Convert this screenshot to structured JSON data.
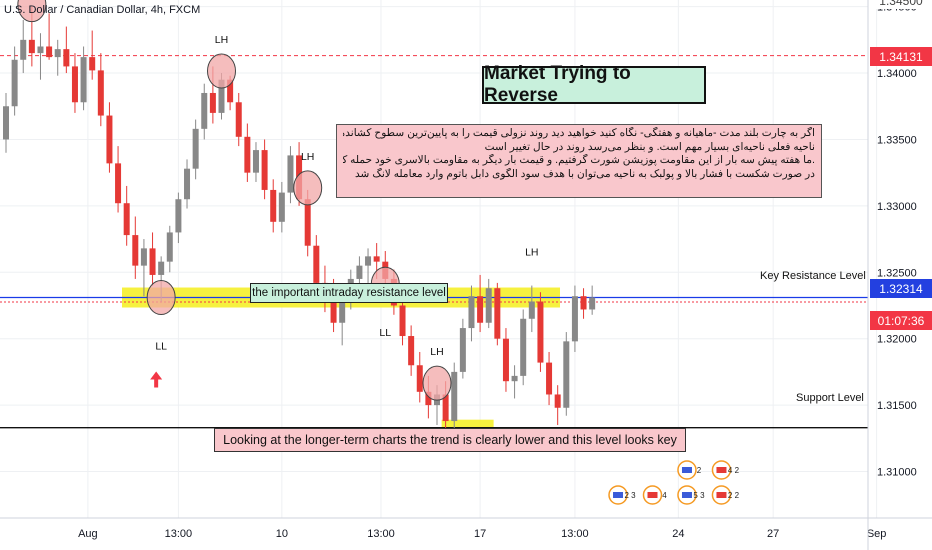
{
  "symbol_title": "U.S. Dollar / Canadian Dollar, 4h, FXCM",
  "title_box": "Market Trying to Reverse",
  "persian_note": {
    "lines": [
      "اگر به چارت بلند مدت -ماهیانه و هفتگی- نگاه کنید خواهید دید روند نزولی قیمت را به پایین‌ترین سطوح کشانده است",
      "ناحیه فعلی ناحیه‌ای بسیار مهم است. و بنظر می‌رسد روند در حال تغییر است",
      ".ما هفته پیش سه بار از این مقاومت پوزیشن شورت گرفتیم. و قیمت بار دیگر به مقاومت بالاسری خود حمله کرده است",
      "در صورت شکست با فشار بالا و پولبک به ناحیه می‌توان با هدف سود الگوی دابل باتوم وارد معامله لانگ شد"
    ]
  },
  "resistance_label": "the important intraday resistance level",
  "bottom_note": "Looking at the longer-term charts the trend is clearly lower and this level looks key",
  "key_resistance_label": "Key Resistance Level",
  "support_label": "Support Level",
  "price_tags": {
    "top_dashed": "1.34131",
    "current": "1.32314",
    "countdown": "01:07:36",
    "top_partial": "1.34500"
  },
  "colors": {
    "up_candle": "#888888",
    "down_candle": "#e53935",
    "resistance_line": "#1a3be8",
    "support_line": "#111111",
    "highlight_yellow": "#f5ef2a",
    "marker_fill": "#f2a7a7",
    "tag_red": "#f23645",
    "tag_blue": "#2340e0",
    "arrow": "#f23645"
  },
  "chart_data": {
    "type": "candlestick",
    "title": "U.S. Dollar / Canadian Dollar, 4h, FXCM",
    "x_tick_labels": [
      "Aug",
      "13:00",
      "10",
      "13:00",
      "17",
      "13:00",
      "24",
      "27",
      "Sep"
    ],
    "y_tick_labels": [
      "1.31000",
      "1.31500",
      "1.32000",
      "1.32500",
      "1.33000",
      "1.33500",
      "1.34000",
      "1.34500"
    ],
    "ylim": [
      1.3065,
      1.3455
    ],
    "grid": true,
    "levels": {
      "key_resistance": 1.3231,
      "support": 1.3133,
      "dashed_red_top": 1.34131,
      "current_price": 1.32314
    },
    "swing_labels": [
      {
        "label": "LH",
        "index": 25
      },
      {
        "label": "LH",
        "index": 35
      },
      {
        "label": "LH",
        "index": 50
      },
      {
        "label": "LH",
        "index": 61
      },
      {
        "label": "LL",
        "index": 18
      },
      {
        "label": "LL",
        "index": 44
      }
    ],
    "event_badges": [
      "2",
      "4 2",
      "2 3",
      "4",
      "5 3",
      "2 2"
    ],
    "candles": [
      {
        "o": 1.335,
        "h": 1.3385,
        "l": 1.334,
        "c": 1.3375
      },
      {
        "o": 1.3375,
        "h": 1.342,
        "l": 1.3368,
        "c": 1.341
      },
      {
        "o": 1.341,
        "h": 1.344,
        "l": 1.34,
        "c": 1.3425
      },
      {
        "o": 1.3425,
        "h": 1.345,
        "l": 1.3405,
        "c": 1.3415
      },
      {
        "o": 1.3415,
        "h": 1.343,
        "l": 1.3395,
        "c": 1.342
      },
      {
        "o": 1.342,
        "h": 1.3445,
        "l": 1.341,
        "c": 1.3412
      },
      {
        "o": 1.3412,
        "h": 1.3425,
        "l": 1.3398,
        "c": 1.3418
      },
      {
        "o": 1.3418,
        "h": 1.3435,
        "l": 1.34,
        "c": 1.3405
      },
      {
        "o": 1.3405,
        "h": 1.3415,
        "l": 1.337,
        "c": 1.3378
      },
      {
        "o": 1.3378,
        "h": 1.342,
        "l": 1.3372,
        "c": 1.3412
      },
      {
        "o": 1.3412,
        "h": 1.3432,
        "l": 1.3395,
        "c": 1.3402
      },
      {
        "o": 1.3402,
        "h": 1.3415,
        "l": 1.336,
        "c": 1.3368
      },
      {
        "o": 1.3368,
        "h": 1.3378,
        "l": 1.3325,
        "c": 1.3332
      },
      {
        "o": 1.3332,
        "h": 1.3345,
        "l": 1.3295,
        "c": 1.3302
      },
      {
        "o": 1.3302,
        "h": 1.3315,
        "l": 1.327,
        "c": 1.3278
      },
      {
        "o": 1.3278,
        "h": 1.3292,
        "l": 1.3245,
        "c": 1.3255
      },
      {
        "o": 1.3255,
        "h": 1.3275,
        "l": 1.3232,
        "c": 1.3268
      },
      {
        "o": 1.3268,
        "h": 1.328,
        "l": 1.324,
        "c": 1.3248
      },
      {
        "o": 1.3248,
        "h": 1.3262,
        "l": 1.3228,
        "c": 1.3258
      },
      {
        "o": 1.3258,
        "h": 1.3285,
        "l": 1.325,
        "c": 1.328
      },
      {
        "o": 1.328,
        "h": 1.331,
        "l": 1.3272,
        "c": 1.3305
      },
      {
        "o": 1.3305,
        "h": 1.3335,
        "l": 1.3298,
        "c": 1.3328
      },
      {
        "o": 1.3328,
        "h": 1.3365,
        "l": 1.332,
        "c": 1.3358
      },
      {
        "o": 1.3358,
        "h": 1.3392,
        "l": 1.335,
        "c": 1.3385
      },
      {
        "o": 1.3385,
        "h": 1.3405,
        "l": 1.3362,
        "c": 1.337
      },
      {
        "o": 1.337,
        "h": 1.34,
        "l": 1.3365,
        "c": 1.3395
      },
      {
        "o": 1.3395,
        "h": 1.3398,
        "l": 1.3372,
        "c": 1.3378
      },
      {
        "o": 1.3378,
        "h": 1.3385,
        "l": 1.3345,
        "c": 1.3352
      },
      {
        "o": 1.3352,
        "h": 1.3362,
        "l": 1.3318,
        "c": 1.3325
      },
      {
        "o": 1.3325,
        "h": 1.3348,
        "l": 1.3318,
        "c": 1.3342
      },
      {
        "o": 1.3342,
        "h": 1.335,
        "l": 1.3305,
        "c": 1.3312
      },
      {
        "o": 1.3312,
        "h": 1.332,
        "l": 1.328,
        "c": 1.3288
      },
      {
        "o": 1.3288,
        "h": 1.3318,
        "l": 1.328,
        "c": 1.331
      },
      {
        "o": 1.331,
        "h": 1.3345,
        "l": 1.3302,
        "c": 1.3338
      },
      {
        "o": 1.3338,
        "h": 1.3348,
        "l": 1.33,
        "c": 1.3305
      },
      {
        "o": 1.3305,
        "h": 1.3312,
        "l": 1.3262,
        "c": 1.327
      },
      {
        "o": 1.327,
        "h": 1.3278,
        "l": 1.3235,
        "c": 1.3242
      },
      {
        "o": 1.3242,
        "h": 1.3255,
        "l": 1.322,
        "c": 1.3232
      },
      {
        "o": 1.3232,
        "h": 1.3245,
        "l": 1.3205,
        "c": 1.3212
      },
      {
        "o": 1.3212,
        "h": 1.3238,
        "l": 1.3195,
        "c": 1.323
      },
      {
        "o": 1.323,
        "h": 1.3252,
        "l": 1.3222,
        "c": 1.3245
      },
      {
        "o": 1.3245,
        "h": 1.3262,
        "l": 1.3238,
        "c": 1.3255
      },
      {
        "o": 1.3255,
        "h": 1.3268,
        "l": 1.3242,
        "c": 1.3262
      },
      {
        "o": 1.3262,
        "h": 1.3272,
        "l": 1.3245,
        "c": 1.3258
      },
      {
        "o": 1.3258,
        "h": 1.3266,
        "l": 1.3238,
        "c": 1.3245
      },
      {
        "o": 1.3245,
        "h": 1.3252,
        "l": 1.3218,
        "c": 1.3225
      },
      {
        "o": 1.3225,
        "h": 1.323,
        "l": 1.3195,
        "c": 1.3202
      },
      {
        "o": 1.3202,
        "h": 1.321,
        "l": 1.3172,
        "c": 1.318
      },
      {
        "o": 1.318,
        "h": 1.319,
        "l": 1.3152,
        "c": 1.316
      },
      {
        "o": 1.316,
        "h": 1.3172,
        "l": 1.314,
        "c": 1.315
      },
      {
        "o": 1.315,
        "h": 1.3165,
        "l": 1.3135,
        "c": 1.3158
      },
      {
        "o": 1.3158,
        "h": 1.3168,
        "l": 1.313,
        "c": 1.3138
      },
      {
        "o": 1.3138,
        "h": 1.3182,
        "l": 1.3132,
        "c": 1.3175
      },
      {
        "o": 1.3175,
        "h": 1.3215,
        "l": 1.317,
        "c": 1.3208
      },
      {
        "o": 1.3208,
        "h": 1.324,
        "l": 1.3198,
        "c": 1.3232
      },
      {
        "o": 1.3232,
        "h": 1.3248,
        "l": 1.3205,
        "c": 1.3212
      },
      {
        "o": 1.3212,
        "h": 1.3245,
        "l": 1.3208,
        "c": 1.3238
      },
      {
        "o": 1.3238,
        "h": 1.3242,
        "l": 1.3195,
        "c": 1.32
      },
      {
        "o": 1.32,
        "h": 1.3208,
        "l": 1.316,
        "c": 1.3168
      },
      {
        "o": 1.3168,
        "h": 1.318,
        "l": 1.3155,
        "c": 1.3172
      },
      {
        "o": 1.3172,
        "h": 1.3222,
        "l": 1.3165,
        "c": 1.3215
      },
      {
        "o": 1.3215,
        "h": 1.324,
        "l": 1.3205,
        "c": 1.3228
      },
      {
        "o": 1.3228,
        "h": 1.3235,
        "l": 1.3175,
        "c": 1.3182
      },
      {
        "o": 1.3182,
        "h": 1.319,
        "l": 1.315,
        "c": 1.3158
      },
      {
        "o": 1.3158,
        "h": 1.3165,
        "l": 1.3135,
        "c": 1.3148
      },
      {
        "o": 1.3148,
        "h": 1.3205,
        "l": 1.3142,
        "c": 1.3198
      },
      {
        "o": 1.3198,
        "h": 1.324,
        "l": 1.319,
        "c": 1.3232
      },
      {
        "o": 1.3232,
        "h": 1.3238,
        "l": 1.3215,
        "c": 1.3222
      },
      {
        "o": 1.3222,
        "h": 1.324,
        "l": 1.3218,
        "c": 1.3231
      }
    ]
  }
}
